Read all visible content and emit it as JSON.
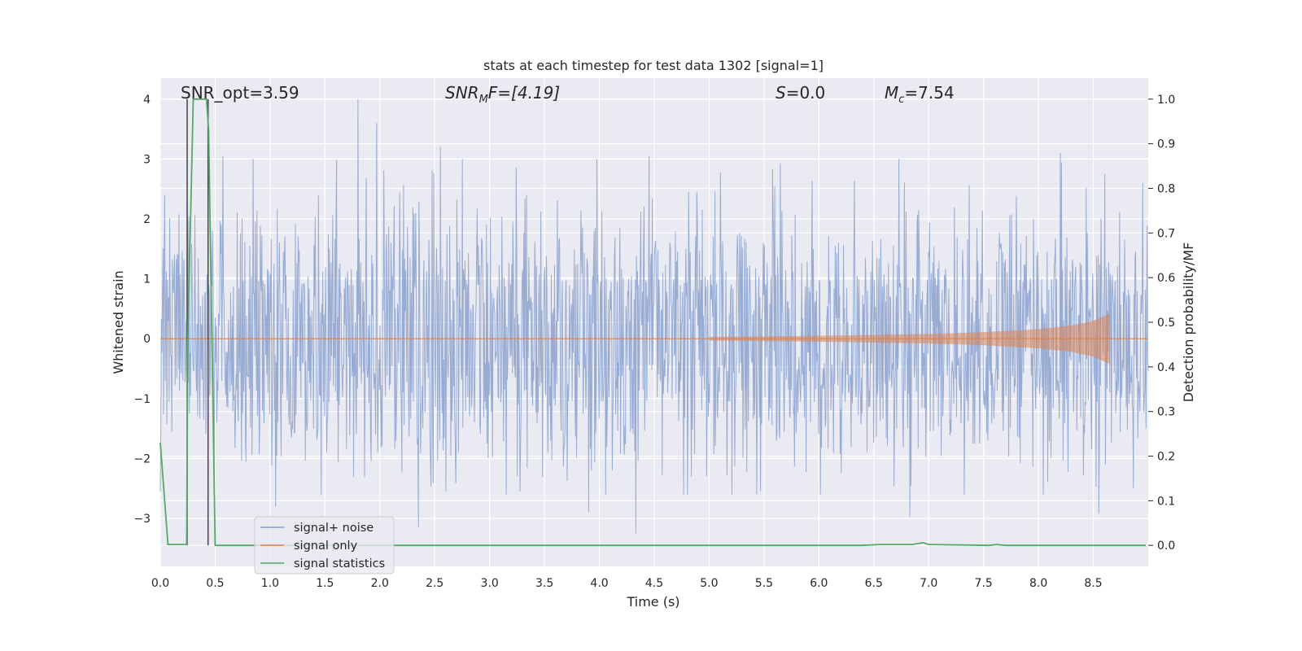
{
  "chart_data": {
    "type": "line",
    "title": "stats at each timestep for test data 1302 [signal=1]",
    "xlabel": "Time (s)",
    "ylabel_left": "Whitened strain",
    "ylabel_right": "Detection probability/MF",
    "xlim": [
      0,
      9.0
    ],
    "ylim_left": [
      -3.8,
      4.35
    ],
    "ylim_right": [
      -0.047,
      1.047
    ],
    "x_ticks": [
      0.0,
      0.5,
      1.0,
      1.5,
      2.0,
      2.5,
      3.0,
      3.5,
      4.0,
      4.5,
      5.0,
      5.5,
      6.0,
      6.5,
      7.0,
      7.5,
      8.0,
      8.5
    ],
    "x_tick_labels": [
      "0.0",
      "0.5",
      "1.0",
      "1.5",
      "2.0",
      "2.5",
      "3.0",
      "3.5",
      "4.0",
      "4.5",
      "5.0",
      "5.5",
      "6.0",
      "6.5",
      "7.0",
      "7.5",
      "8.0",
      "8.5"
    ],
    "y_left_ticks": [
      4,
      3,
      2,
      1,
      0,
      -1,
      -2,
      -3
    ],
    "y_left_tick_labels": [
      "4",
      "3",
      "2",
      "1",
      "0",
      "−1",
      "−2",
      "−3"
    ],
    "y_right_ticks": [
      1.0,
      0.9,
      0.8,
      0.7,
      0.6,
      0.5,
      0.4,
      0.3,
      0.2,
      0.1,
      0.0
    ],
    "y_right_tick_labels": [
      "1.0",
      "0.9",
      "0.8",
      "0.7",
      "0.6",
      "0.5",
      "0.4",
      "0.3",
      "0.2",
      "0.1",
      "0.0"
    ],
    "grid": true,
    "annotations": {
      "snr_opt": "SNR_opt=3.59",
      "snr_mf_base": "SNR",
      "snr_mf_sub": "M",
      "snr_mf_rest": "F=[4.19]",
      "s_italic": "S",
      "s_rest": "=0.0",
      "mc_italic": "M",
      "mc_sub": "c",
      "mc_rest": "=7.54"
    },
    "legend": {
      "position": "lower-left",
      "entries": [
        {
          "label": "signal+ noise",
          "color": "#8da0cb"
        },
        {
          "label": "signal only",
          "color": "#dd8452"
        },
        {
          "label": "signal statistics",
          "color": "#55a868"
        }
      ]
    },
    "series": [
      {
        "name": "signal+ noise",
        "axis": "left",
        "color": "#92a8d1",
        "description_values": {
          "duration": 9.0,
          "samples_drawn": 1800,
          "typical_amplitude": 1.3,
          "max": 4.0,
          "min": -3.25
        },
        "peaks": [
          {
            "x": 0.04,
            "y": 2.4
          },
          {
            "x": 0.57,
            "y": 3.05
          },
          {
            "x": 1.8,
            "y": 4.0
          },
          {
            "x": 1.97,
            "y": 3.6
          },
          {
            "x": 2.55,
            "y": 3.2
          },
          {
            "x": 2.75,
            "y": 3.0
          },
          {
            "x": 4.45,
            "y": 3.05
          },
          {
            "x": 8.2,
            "y": 3.1
          },
          {
            "x": 8.95,
            "y": 2.6
          },
          {
            "x": 2.35,
            "y": -3.15
          },
          {
            "x": 4.33,
            "y": -3.25
          },
          {
            "x": 6.83,
            "y": -2.98
          },
          {
            "x": 8.55,
            "y": -2.92
          },
          {
            "x": 1.05,
            "y": -2.8
          },
          {
            "x": 3.9,
            "y": -2.9
          }
        ]
      },
      {
        "name": "signal only",
        "axis": "left",
        "color": "#dd8452",
        "envelope": [
          {
            "x": 5.0,
            "y": 0.03
          },
          {
            "x": 6.0,
            "y": 0.05
          },
          {
            "x": 7.0,
            "y": 0.08
          },
          {
            "x": 7.5,
            "y": 0.11
          },
          {
            "x": 8.0,
            "y": 0.16
          },
          {
            "x": 8.3,
            "y": 0.22
          },
          {
            "x": 8.5,
            "y": 0.3
          },
          {
            "x": 8.6,
            "y": 0.38
          },
          {
            "x": 8.65,
            "y": 0.42
          }
        ],
        "end_x": 8.65
      },
      {
        "name": "signal statistics",
        "axis": "right",
        "color": "#55a868",
        "points": [
          [
            0.0,
            0.23
          ],
          [
            0.07,
            0.002
          ],
          [
            0.24,
            0.002
          ],
          [
            0.25,
            0.45
          ],
          [
            0.3,
            1.0
          ],
          [
            0.42,
            1.0
          ],
          [
            0.44,
            0.93
          ],
          [
            0.5,
            0.0
          ],
          [
            6.4,
            0.0
          ],
          [
            6.55,
            0.002
          ],
          [
            6.85,
            0.002
          ],
          [
            6.95,
            0.006
          ],
          [
            7.0,
            0.002
          ],
          [
            7.55,
            0.0
          ],
          [
            7.62,
            0.002
          ],
          [
            7.7,
            0.0
          ],
          [
            8.98,
            0.0
          ]
        ]
      },
      {
        "name": "detection markers",
        "axis": "right",
        "color": "#4c4c4c",
        "points_a": [
          [
            0.245,
            0.0
          ],
          [
            0.245,
            1.0
          ]
        ],
        "points_b": [
          [
            0.435,
            1.0
          ],
          [
            0.435,
            0.0
          ]
        ]
      }
    ]
  }
}
